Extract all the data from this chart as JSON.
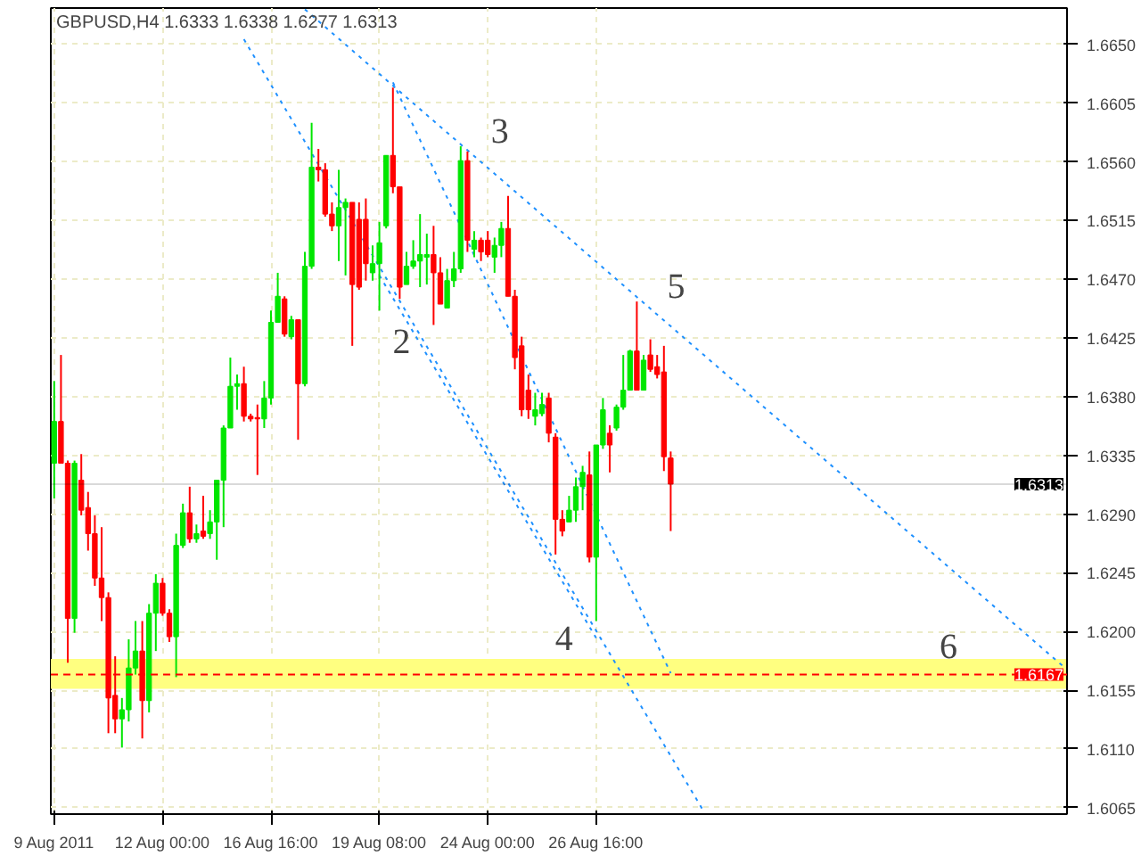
{
  "chart_data": {
    "type": "candlestick",
    "title": "GBPUSD,H4  1.6333 1.6338 1.6277 1.6313",
    "categories": [
      "9 Aug 2011",
      null,
      null,
      null,
      null,
      null,
      null,
      null,
      null,
      null,
      null,
      null,
      null,
      null,
      null,
      null,
      "12 Aug 00:00",
      null,
      null,
      null,
      null,
      null,
      null,
      null,
      null,
      null,
      null,
      null,
      null,
      null,
      null,
      null,
      "16 Aug 16:00",
      null,
      null,
      null,
      null,
      null,
      null,
      null,
      null,
      null,
      null,
      null,
      null,
      null,
      null,
      null,
      "19 Aug 08:00",
      null,
      null,
      null,
      null,
      null,
      null,
      null,
      null,
      null,
      null,
      null,
      null,
      null,
      null,
      null,
      "24 Aug 00:00",
      null,
      null,
      null,
      null,
      null,
      null,
      null,
      null,
      null,
      null,
      null,
      null,
      null,
      null,
      null,
      "26 Aug 16:00",
      null,
      null,
      null,
      null,
      null,
      null,
      null,
      null,
      null,
      null,
      null,
      null,
      null,
      null,
      null,
      null,
      null,
      null,
      null,
      null,
      null,
      null,
      null,
      null,
      null,
      null,
      null,
      null,
      null,
      null,
      null,
      null,
      null,
      null,
      null,
      null,
      null,
      null,
      null,
      null,
      null,
      null,
      null,
      null,
      null,
      null,
      null,
      null,
      null,
      null,
      null,
      null,
      null,
      null,
      null,
      null,
      null,
      null,
      null,
      null,
      null,
      null,
      null,
      null,
      null,
      null,
      null,
      null,
      null
    ],
    "colors": [
      "#00e600",
      "#ff0000",
      "#ff0000",
      "#00e600",
      "#ff0000",
      "#ff0000",
      "#ff0000",
      "#ff0000",
      "#ff0000",
      "#ff0000",
      "#00e600",
      "#00e600",
      "#00e600",
      "#ff0000",
      "#00e600",
      "#00e600",
      "#ff0000",
      "#ff0000",
      "#00e600",
      "#00e600",
      "#ff0000",
      "#00e600",
      "#ff0000",
      "#00e600",
      "#00e600",
      "#00e600",
      "#00e600",
      "#00e600",
      "#ff0000",
      "#ff0000",
      "#ff0000",
      "#00e600",
      "#00e600",
      "#00e600",
      "#ff0000",
      "#00e600",
      "#ff0000",
      "#00e600",
      "#00e600",
      "#ff0000",
      "#ff0000",
      "#ff0000",
      "#00e600",
      "#00e600",
      "#ff0000",
      "#ff0000",
      "#ff0000",
      "#00e600",
      "#00e600",
      "#00e600",
      "#ff0000",
      "#ff0000",
      "#00e600",
      "#00e600",
      "#00e600",
      "#00e600",
      "#ff0000",
      "#ff0000",
      "#00e600",
      "#00e600",
      "#00e600",
      "#ff0000",
      "#00e600",
      "#ff0000",
      "#ff0000",
      "#00e600",
      "#00e600",
      "#ff0000",
      "#ff0000",
      "#ff0000",
      "#ff0000",
      "#00e600",
      "#00e600",
      "#ff0000",
      "#ff0000",
      "#ff0000",
      "#00e600",
      "#00e600",
      "#00e600",
      "#ff0000",
      "#00e600",
      "#00e600",
      "#ff0000",
      "#00e600",
      "#00e600",
      "#00e600",
      "#ff0000",
      "#00e600",
      "#ff0000",
      "#ff0000",
      "#ff0000",
      "#ff0000",
      null,
      null,
      null,
      null,
      null,
      null,
      null,
      null,
      null,
      null,
      null,
      null,
      null,
      null,
      null,
      null,
      null,
      null,
      null,
      null,
      null,
      null,
      null,
      null,
      null,
      null,
      null,
      null,
      null,
      null,
      null,
      null,
      null,
      null,
      null,
      null,
      null,
      null,
      null,
      null,
      null,
      null,
      null,
      null,
      null,
      null,
      null,
      null,
      null,
      null,
      null,
      null,
      null,
      null,
      null,
      null,
      null,
      null
    ],
    "ohlc": [
      [
        1.6329,
        1.6392,
        1.6302,
        1.6361
      ],
      [
        1.6361,
        1.6412,
        1.6329,
        1.6329
      ],
      [
        1.6329,
        1.6331,
        1.6176,
        1.621
      ],
      [
        1.621,
        1.6331,
        1.6199,
        1.6329
      ],
      [
        1.6316,
        1.6336,
        1.6289,
        1.6293
      ],
      [
        1.6295,
        1.6307,
        1.6262,
        1.6275
      ],
      [
        1.6275,
        1.6289,
        1.6235,
        1.6241
      ],
      [
        1.6241,
        1.628,
        1.6208,
        1.6226
      ],
      [
        1.6226,
        1.623,
        1.6122,
        1.6149
      ],
      [
        1.6151,
        1.6181,
        1.6122,
        1.6133
      ],
      [
        1.6133,
        1.6149,
        1.6111,
        1.614
      ],
      [
        1.614,
        1.6194,
        1.6131,
        1.6172
      ],
      [
        1.6172,
        1.6208,
        1.6167,
        1.6185
      ],
      [
        1.6185,
        1.6208,
        1.6118,
        1.6147
      ],
      [
        1.6147,
        1.6221,
        1.6138,
        1.6214
      ],
      [
        1.6214,
        1.6244,
        1.6185,
        1.6237
      ],
      [
        1.6237,
        1.6241,
        1.6212,
        1.6214
      ],
      [
        1.6214,
        1.6217,
        1.6192,
        1.6196
      ],
      [
        1.6196,
        1.6275,
        1.6165,
        1.6266
      ],
      [
        1.6266,
        1.6298,
        1.6264,
        1.6291
      ],
      [
        1.6291,
        1.6311,
        1.6268,
        1.6271
      ],
      [
        1.6271,
        1.6282,
        1.6268,
        1.6275
      ],
      [
        1.6277,
        1.6304,
        1.6271,
        1.6273
      ],
      [
        1.6275,
        1.6293,
        1.6271,
        1.6284
      ],
      [
        1.6284,
        1.6316,
        1.6255,
        1.6316
      ],
      [
        1.6316,
        1.6358,
        1.628,
        1.6356
      ],
      [
        1.6356,
        1.641,
        1.6356,
        1.6388
      ],
      [
        1.6388,
        1.6397,
        1.637,
        1.639
      ],
      [
        1.639,
        1.6403,
        1.6361,
        1.6365
      ],
      [
        1.6365,
        1.6367,
        1.6361,
        1.6363
      ],
      [
        1.6364,
        1.6374,
        1.632,
        1.6363
      ],
      [
        1.6363,
        1.6392,
        1.6356,
        1.6379
      ],
      [
        1.6379,
        1.6446,
        1.6374,
        1.6437
      ],
      [
        1.6437,
        1.6475,
        1.6437,
        1.6457
      ],
      [
        1.6455,
        1.6457,
        1.6426,
        1.6428
      ],
      [
        1.6426,
        1.6442,
        1.6424,
        1.6439
      ],
      [
        1.6439,
        1.6439,
        1.6347,
        1.639
      ],
      [
        1.639,
        1.6491,
        1.6388,
        1.648
      ],
      [
        1.648,
        1.659,
        1.6478,
        1.6556
      ],
      [
        1.6556,
        1.657,
        1.6545,
        1.6554
      ],
      [
        1.6554,
        1.6559,
        1.6518,
        1.652
      ],
      [
        1.652,
        1.6529,
        1.6507,
        1.6511
      ],
      [
        1.6511,
        1.6554,
        1.6484,
        1.6525
      ],
      [
        1.6525,
        1.6532,
        1.6473,
        1.6529
      ],
      [
        1.6529,
        1.6529,
        1.6419,
        1.6466
      ],
      [
        1.6516,
        1.6529,
        1.6462,
        1.6464
      ],
      [
        1.6516,
        1.6532,
        1.6469,
        1.6482
      ],
      [
        1.6475,
        1.6496,
        1.6469,
        1.6482
      ],
      [
        1.6482,
        1.6514,
        1.6446,
        1.6498
      ],
      [
        1.6511,
        1.6565,
        1.6509,
        1.6565
      ],
      [
        1.6565,
        1.6617,
        1.6536,
        1.6541
      ],
      [
        1.6541,
        1.6541,
        1.6455,
        1.6464
      ],
      [
        1.6466,
        1.6491,
        1.6466,
        1.648
      ],
      [
        1.648,
        1.65,
        1.6478,
        1.6484
      ],
      [
        1.6484,
        1.652,
        1.6464,
        1.6489
      ],
      [
        1.6487,
        1.6505,
        1.6466,
        1.6489
      ],
      [
        1.6489,
        1.6511,
        1.6435,
        1.6475
      ],
      [
        1.6475,
        1.6487,
        1.6451,
        1.6451
      ],
      [
        1.6448,
        1.6478,
        1.6448,
        1.6469
      ],
      [
        1.6469,
        1.6491,
        1.6464,
        1.6478
      ],
      [
        1.6478,
        1.6572,
        1.6475,
        1.6561
      ],
      [
        1.6561,
        1.6568,
        1.6491,
        1.65
      ],
      [
        1.6493,
        1.6507,
        1.6487,
        1.65
      ],
      [
        1.65,
        1.6502,
        1.6484,
        1.6491
      ],
      [
        1.65,
        1.6507,
        1.6487,
        1.6489
      ],
      [
        1.6487,
        1.6502,
        1.6475,
        1.6496
      ],
      [
        1.6496,
        1.6514,
        1.6487,
        1.6509
      ],
      [
        1.6509,
        1.6534,
        1.6457,
        1.6457
      ],
      [
        1.6457,
        1.6462,
        1.6401,
        1.641
      ],
      [
        1.6419,
        1.6426,
        1.6365,
        1.637
      ],
      [
        1.6385,
        1.6397,
        1.6363,
        1.637
      ],
      [
        1.6365,
        1.6383,
        1.6358,
        1.637
      ],
      [
        1.6367,
        1.6383,
        1.6365,
        1.6374
      ],
      [
        1.6379,
        1.6383,
        1.6345,
        1.6352
      ],
      [
        1.6349,
        1.6352,
        1.6259,
        1.6286
      ],
      [
        1.6286,
        1.6293,
        1.6273,
        1.6277
      ],
      [
        1.6284,
        1.6304,
        1.6284,
        1.6293
      ],
      [
        1.6293,
        1.6318,
        1.6284,
        1.6311
      ],
      [
        1.6311,
        1.6327,
        1.6293,
        1.6322
      ],
      [
        1.632,
        1.6338,
        1.6253,
        1.6257
      ],
      [
        1.6257,
        1.6343,
        1.6208,
        1.6343
      ],
      [
        1.6343,
        1.6379,
        1.634,
        1.637
      ],
      [
        1.6352,
        1.6358,
        1.6322,
        1.6343
      ],
      [
        1.6356,
        1.6374,
        1.6354,
        1.6372
      ],
      [
        1.6372,
        1.6412,
        1.637,
        1.6385
      ],
      [
        1.6385,
        1.6416,
        1.6385,
        1.6415
      ],
      [
        1.6415,
        1.6453,
        1.6385,
        1.6385
      ],
      [
        1.6385,
        1.6412,
        1.6385,
        1.6408
      ],
      [
        1.6412,
        1.6424,
        1.6399,
        1.6401
      ],
      [
        1.6403,
        1.6412,
        1.6394,
        1.6397
      ],
      [
        1.6399,
        1.6419,
        1.6323,
        1.6334
      ],
      [
        1.6333,
        1.6338,
        1.6277,
        1.6313
      ],
      null,
      null,
      null,
      null,
      null,
      null,
      null,
      null,
      null,
      null,
      null,
      null,
      null,
      null,
      null,
      null,
      null,
      null,
      null,
      null,
      null,
      null,
      null,
      null,
      null,
      null,
      null,
      null,
      null,
      null,
      null,
      null,
      null,
      null,
      null,
      null,
      null,
      null,
      null,
      null,
      null,
      null,
      null,
      null,
      null,
      null,
      null,
      null,
      null,
      null,
      null,
      null,
      null,
      null,
      null,
      null,
      null,
      null
    ],
    "series": [
      {
        "type": "line",
        "color": "#1e90ff",
        "line_style": "dotted",
        "values": [
          null,
          null,
          null,
          null,
          null,
          null,
          null,
          null,
          null,
          null,
          null,
          null,
          null,
          null,
          null,
          null,
          null,
          null,
          null,
          null,
          null,
          null,
          null,
          null,
          null,
          null,
          null,
          null,
          1.6654,
          null,
          null,
          null,
          null,
          null,
          null,
          null,
          null,
          null,
          null,
          null,
          null,
          null,
          null,
          null,
          null,
          null,
          null,
          null,
          null,
          null,
          null,
          null,
          null,
          null,
          null,
          null,
          null,
          null,
          null,
          null,
          null,
          null,
          null,
          null,
          null,
          null,
          null,
          null,
          null,
          null,
          null,
          null,
          null,
          null,
          null,
          null,
          null,
          null,
          null,
          null,
          null,
          null,
          null,
          null,
          null,
          null,
          null,
          null,
          null,
          null,
          null,
          null,
          null,
          null,
          null,
          null,
          1.6061,
          null,
          null,
          null,
          null,
          null,
          null,
          null,
          null,
          null,
          null,
          null,
          null,
          null,
          null,
          null,
          null,
          null,
          null,
          null,
          null,
          null,
          null,
          null,
          null,
          null,
          null,
          null,
          null,
          null,
          null,
          null,
          null,
          null,
          null,
          null,
          null,
          null,
          null,
          null,
          null,
          null,
          null,
          null,
          null,
          null,
          null,
          null,
          null,
          null,
          null,
          null,
          null,
          null
        ]
      },
      {
        "type": "line",
        "color": "#1e90ff",
        "line_style": "dotted",
        "values": [
          null,
          null,
          null,
          null,
          null,
          null,
          null,
          null,
          null,
          null,
          null,
          null,
          null,
          null,
          null,
          null,
          null,
          null,
          null,
          null,
          null,
          null,
          null,
          null,
          null,
          null,
          null,
          null,
          null,
          null,
          null,
          null,
          null,
          null,
          null,
          null,
          null,
          1.6677,
          null,
          null,
          null,
          null,
          null,
          null,
          null,
          null,
          null,
          null,
          null,
          null,
          null,
          null,
          null,
          null,
          null,
          null,
          null,
          null,
          null,
          null,
          null,
          null,
          null,
          null,
          null,
          null,
          null,
          null,
          null,
          null,
          null,
          null,
          null,
          null,
          null,
          null,
          null,
          null,
          null,
          null,
          null,
          null,
          null,
          null,
          null,
          null,
          null,
          null,
          null,
          null,
          null,
          null,
          null,
          null,
          null,
          null,
          null,
          null,
          null,
          null,
          null,
          null,
          null,
          null,
          null,
          null,
          null,
          null,
          null,
          null,
          null,
          null,
          null,
          null,
          null,
          null,
          null,
          null,
          null,
          null,
          null,
          null,
          null,
          null,
          null,
          null,
          null,
          null,
          null,
          null,
          null,
          null,
          null,
          null,
          null,
          null,
          null,
          null,
          null,
          null,
          null,
          null,
          null,
          null,
          null,
          null,
          null,
          null,
          null,
          1.6173
        ]
      },
      {
        "type": "line",
        "color": "#1e90ff",
        "line_style": "dotted",
        "values": [
          null,
          null,
          null,
          null,
          null,
          null,
          null,
          null,
          null,
          null,
          null,
          null,
          null,
          null,
          null,
          null,
          null,
          null,
          null,
          null,
          null,
          null,
          null,
          null,
          null,
          null,
          null,
          null,
          null,
          null,
          null,
          null,
          null,
          null,
          null,
          null,
          null,
          null,
          null,
          null,
          null,
          null,
          null,
          null,
          null,
          null,
          null,
          null,
          null,
          null,
          1.6621,
          null,
          null,
          null,
          null,
          null,
          null,
          null,
          null,
          null,
          null,
          null,
          null,
          null,
          null,
          null,
          null,
          null,
          null,
          null,
          null,
          null,
          null,
          null,
          null,
          null,
          null,
          null,
          null,
          null,
          null,
          null,
          null,
          null,
          null,
          null,
          null,
          null,
          null,
          null,
          null,
          1.6168,
          null,
          null,
          null,
          null,
          null,
          null,
          null,
          null,
          null,
          null,
          null,
          null,
          null,
          null,
          null,
          null,
          null,
          null,
          null,
          null,
          null,
          null,
          null,
          null,
          null,
          null,
          null,
          null,
          null,
          null,
          null,
          null,
          null,
          null,
          null,
          null,
          null,
          null,
          null,
          null,
          null,
          null,
          null,
          null,
          null,
          null,
          null,
          null,
          null,
          null,
          null,
          null,
          null,
          null,
          null,
          null,
          null,
          null
        ]
      },
      {
        "type": "line",
        "color": "#1e90ff",
        "line_style": "dotted",
        "values": [
          null,
          null,
          null,
          null,
          null,
          null,
          null,
          null,
          null,
          null,
          null,
          null,
          null,
          null,
          null,
          null,
          null,
          null,
          null,
          null,
          null,
          null,
          null,
          null,
          null,
          null,
          null,
          null,
          null,
          null,
          null,
          null,
          null,
          null,
          null,
          null,
          null,
          null,
          null,
          null,
          null,
          null,
          null,
          null,
          null,
          null,
          null,
          null,
          1.6473,
          null,
          null,
          null,
          null,
          null,
          null,
          null,
          null,
          null,
          null,
          null,
          null,
          null,
          null,
          null,
          null,
          null,
          null,
          null,
          null,
          null,
          null,
          null,
          null,
          null,
          null,
          null,
          null,
          null,
          null,
          null,
          1.6195,
          null,
          null,
          null,
          null,
          null,
          null,
          null,
          null,
          null,
          null,
          null,
          null,
          null,
          null,
          null,
          null,
          null,
          null,
          null,
          null,
          null,
          null,
          null,
          null,
          null,
          null,
          null,
          null,
          null,
          null,
          null,
          null,
          null,
          null,
          null,
          null,
          null,
          null,
          null,
          null,
          null,
          null,
          null,
          null,
          null,
          null,
          null,
          null,
          null,
          null,
          null,
          null,
          null,
          null,
          null,
          null,
          null,
          null,
          null,
          null,
          null,
          null,
          null,
          null,
          null,
          null,
          null,
          null,
          null
        ]
      }
    ],
    "ylim": [
      1.606,
      1.6678
    ],
    "yticks": [
      1.6065,
      {
        "value": 1.611,
        "label": "1.6110"
      },
      1.6155,
      {
        "value": 1.62,
        "label": "1.6200"
      },
      1.6245,
      {
        "value": 1.629,
        "label": "1.6290"
      },
      1.6335,
      {
        "value": 1.638,
        "label": "1.6380"
      },
      1.6425,
      {
        "value": 1.647,
        "label": "1.6470"
      },
      1.6515,
      {
        "value": 1.656,
        "label": "1.6560"
      },
      1.6605,
      {
        "value": 1.665,
        "label": "1.6650"
      }
    ],
    "grid": true,
    "ref_lines": [
      {
        "axis": "y",
        "value": 1.6167,
        "label": "1.6167",
        "color": "#ff0000",
        "line_style": "dashed"
      },
      {
        "axis": "y",
        "value": 1.6313,
        "label": "1.6313",
        "color": "#000000",
        "line_style": "solid"
      }
    ],
    "bands": [
      {
        "axis": "y",
        "from": 1.6156,
        "to": 1.6179,
        "color": "#ffff80"
      }
    ],
    "annotations": [
      "2",
      "3",
      "4",
      "5",
      "6"
    ]
  }
}
